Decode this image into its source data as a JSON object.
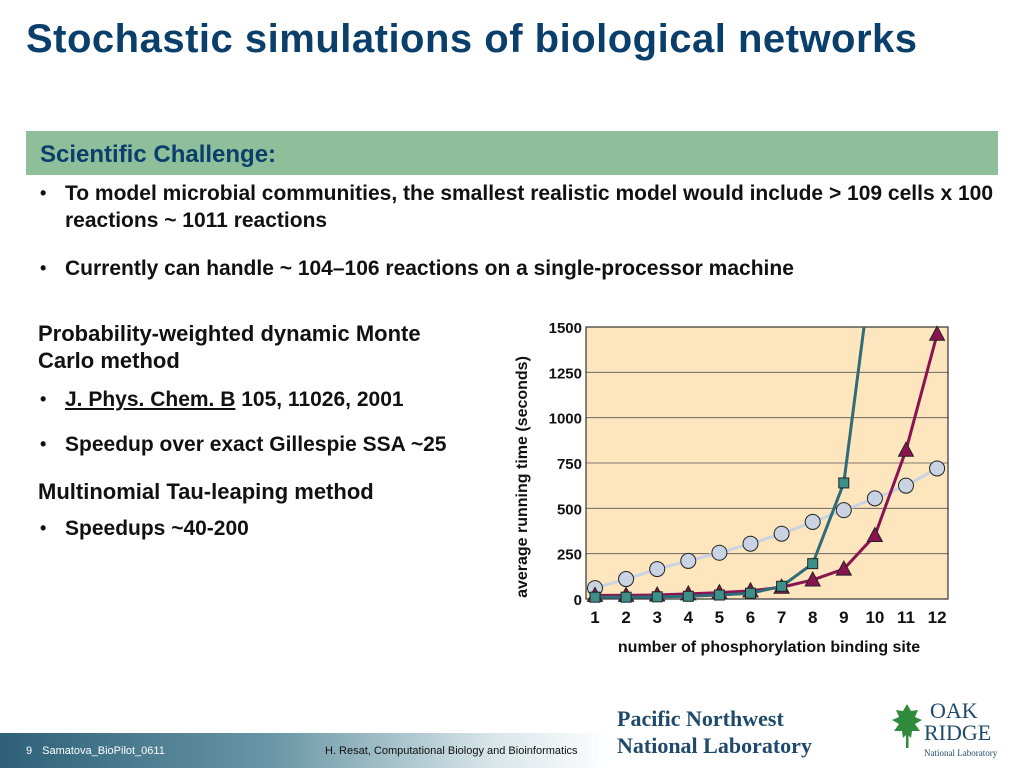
{
  "title": "Stochastic simulations of biological networks",
  "challenge": {
    "label": "Scientific Challenge:",
    "bullets": [
      "To model microbial communities, the smallest realistic model would include > 109  cells x 100 reactions ~ 1011 reactions",
      "Currently can handle ~ 104–106 reactions on a single-processor machine"
    ]
  },
  "methods": {
    "pwdmc": {
      "heading": "Probability-weighted dynamic Monte Carlo method",
      "ref_journal": "J. Phys. Chem. B",
      "ref_rest": " 105, 11026, 2001",
      "speedup": "Speedup over exact Gillespie SSA  ~25"
    },
    "tau": {
      "heading": "Multinomial Tau-leaping method",
      "speedup": "Speedups ~40-200"
    }
  },
  "chart_data": {
    "type": "line",
    "xlabel": "number of phosphorylation binding site",
    "ylabel": "average running time (seconds)",
    "x": [
      1,
      2,
      3,
      4,
      5,
      6,
      7,
      8,
      9,
      10,
      11,
      12
    ],
    "x_ticks": [
      "1",
      "2",
      "3",
      "4",
      "5",
      "6",
      "7",
      "8",
      "9",
      "10",
      "11",
      "12"
    ],
    "y_ticks": [
      "0",
      "250",
      "500",
      "750",
      "1000",
      "1250",
      "1500"
    ],
    "ylim": [
      0,
      1500
    ],
    "grid": true,
    "background_color": "#fde5bd",
    "series": [
      {
        "marker": "circle",
        "color": "#c9d3e3",
        "line_color": "#c9d3e3",
        "x": [
          1,
          2,
          3,
          4,
          5,
          6,
          7,
          8,
          9,
          10,
          11,
          12
        ],
        "y": [
          60,
          110,
          165,
          210,
          255,
          305,
          360,
          425,
          490,
          555,
          625,
          720
        ]
      },
      {
        "marker": "triangle",
        "color": "#8a1451",
        "line_color": "#8a1451",
        "x": [
          1,
          2,
          3,
          4,
          5,
          6,
          7,
          8,
          9,
          10,
          11,
          12
        ],
        "y": [
          20,
          20,
          22,
          28,
          35,
          45,
          65,
          105,
          165,
          350,
          820,
          1460
        ]
      },
      {
        "marker": "square",
        "color": "#3d8f8a",
        "line_color": "#2f6b78",
        "x": [
          1,
          2,
          3,
          4,
          5,
          6,
          7,
          8,
          9,
          9.65
        ],
        "y": [
          10,
          10,
          12,
          15,
          22,
          32,
          70,
          195,
          640,
          1500
        ],
        "marker_count": 9
      }
    ]
  },
  "footer": {
    "page": "9",
    "file": "Samatova_BioPilot_0611",
    "credit": "H. Resat, Computational Biology and Bioinformatics"
  },
  "logos": {
    "pnnl": [
      "Pacific Northwest",
      "National Laboratory"
    ],
    "ornl": {
      "oak": "OAK",
      "ridge": "RIDGE",
      "sub": "National Laboratory"
    }
  }
}
